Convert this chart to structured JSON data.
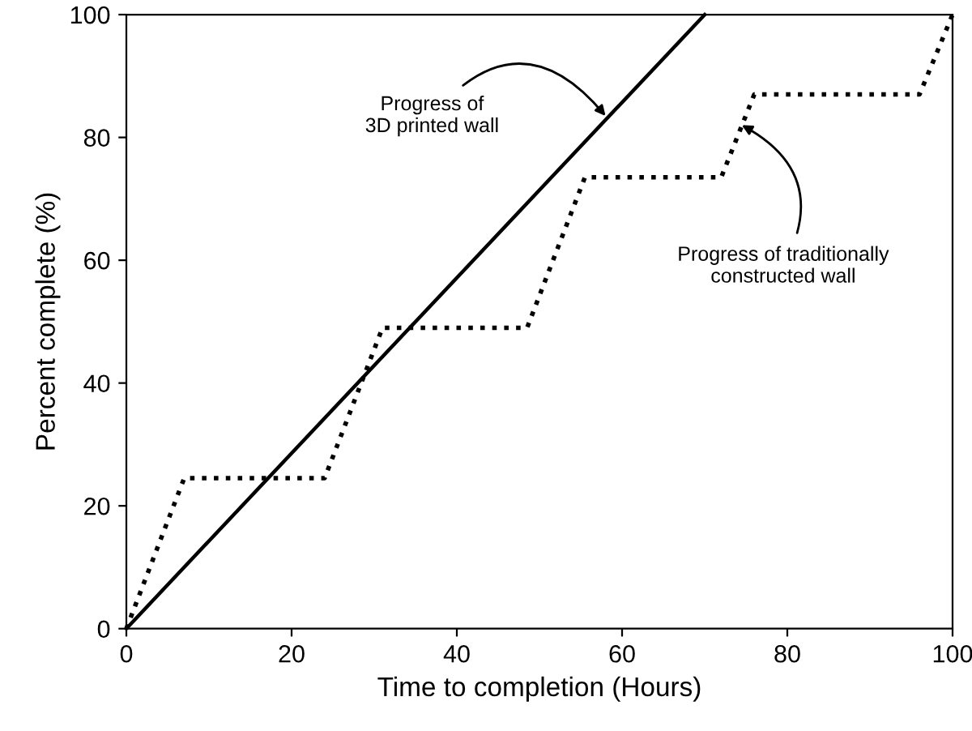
{
  "chart_data": {
    "type": "line",
    "xlabel": "Time to completion (Hours)",
    "ylabel": "Percent complete (%)",
    "xlim": [
      0,
      100
    ],
    "ylim": [
      0,
      100
    ],
    "xticks": [
      0,
      20,
      40,
      60,
      80,
      100
    ],
    "yticks": [
      0,
      20,
      40,
      60,
      80,
      100
    ],
    "grid": false,
    "legend": false,
    "marker": "none",
    "series": [
      {
        "x": [
          0,
          70
        ],
        "values": [
          0,
          100
        ],
        "color": "#000000",
        "line_style": "solid"
      },
      {
        "x": [
          0,
          7,
          24,
          31,
          48.5,
          55.5,
          72,
          76,
          96,
          100
        ],
        "values": [
          0,
          24.5,
          24.5,
          49,
          49,
          73.5,
          73.5,
          87,
          87,
          100
        ],
        "color": "#000000",
        "line_style": "dotted"
      }
    ],
    "annotations": [
      {
        "text": "Progress of\n3D printed wall",
        "x": 58,
        "y": 83.5
      },
      {
        "text": "Progress of traditionally\nconstructed wall",
        "x": 74.5,
        "y": 82
      }
    ]
  }
}
